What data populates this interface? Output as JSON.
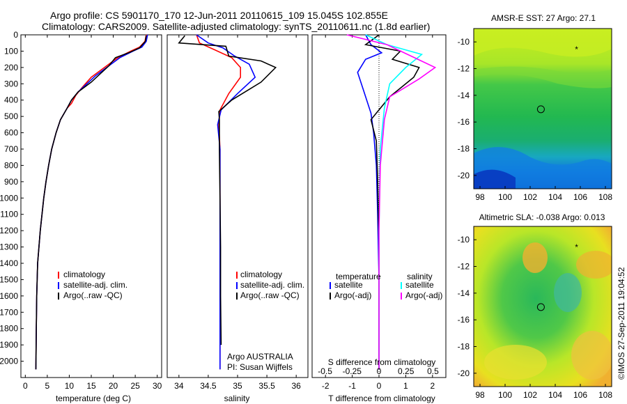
{
  "title_line1": "Argo profile: CS 5901170_170 12-Jun-2011 20110615_109 15.045S 102.855E",
  "title_line2": "Climatology: CARS2009. Satellite-adjusted climatology: synTS_20110611.nc (1.8d earlier)",
  "side_stamp": "©IMOS 27-Sep-2011 19:04:52",
  "colors": {
    "climatology": "#ff0000",
    "satellite": "#0000ff",
    "argo": "#000000",
    "salinity_satellite": "#00ffff",
    "salinity_argo": "#ff00ff"
  },
  "chart_data": [
    {
      "id": "temperature",
      "type": "line",
      "xlabel": "temperature (deg C)",
      "ylabel": "",
      "xlim": [
        -1,
        31
      ],
      "ylim": [
        2100,
        0
      ],
      "xticks": [
        0,
        5,
        10,
        15,
        20,
        25,
        30
      ],
      "yticks": [
        0,
        100,
        200,
        300,
        400,
        500,
        600,
        700,
        800,
        900,
        1000,
        1100,
        1200,
        1300,
        1400,
        1500,
        1600,
        1700,
        1800,
        1900,
        2000
      ],
      "legend": [
        "climatology",
        "satellite-adj. clim.",
        "Argo(..raw -QC)"
      ],
      "series": [
        {
          "name": "climatology",
          "color": "#ff0000",
          "x": [
            27.5,
            27.2,
            26,
            24,
            21,
            18,
            15,
            13,
            11.5,
            10.5,
            9.5,
            8,
            7,
            6,
            5.3,
            4.7,
            4.2,
            3.8,
            3.4,
            3.1,
            2.8,
            2.6,
            2.5,
            2.4
          ],
          "y": [
            0,
            40,
            75,
            100,
            140,
            200,
            260,
            320,
            370,
            420,
            450,
            520,
            600,
            700,
            800,
            900,
            1000,
            1100,
            1200,
            1300,
            1400,
            1600,
            1800,
            2050
          ]
        },
        {
          "name": "satellite-adj. clim.",
          "color": "#0000ff",
          "x": [
            27.8,
            27.5,
            26.5,
            24.5,
            21.5,
            19,
            16,
            14,
            12,
            10.5,
            9.5,
            8,
            7,
            6,
            5.3,
            4.7,
            4.2,
            3.8,
            3.4,
            3.1,
            2.8,
            2.6,
            2.5,
            2.4
          ],
          "y": [
            0,
            40,
            75,
            100,
            140,
            190,
            250,
            300,
            350,
            400,
            450,
            520,
            600,
            700,
            800,
            900,
            1000,
            1100,
            1200,
            1300,
            1400,
            1600,
            1800,
            2050
          ]
        },
        {
          "name": "Argo(..raw -QC)",
          "color": "#000000",
          "x": [
            27.5,
            27.3,
            26,
            23.5,
            20.5,
            19,
            17,
            15,
            12,
            10.5,
            9.5,
            8,
            7,
            6,
            5.3,
            4.7,
            4.2,
            3.8,
            3.4,
            3.1,
            2.8,
            2.6,
            2.5,
            2.4
          ],
          "y": [
            5,
            40,
            80,
            110,
            140,
            190,
            240,
            290,
            350,
            400,
            450,
            520,
            600,
            700,
            800,
            900,
            1000,
            1100,
            1200,
            1300,
            1400,
            1600,
            1800,
            2050
          ]
        }
      ]
    },
    {
      "id": "salinity",
      "type": "line",
      "xlabel": "salinity",
      "xlim": [
        33.8,
        36.2
      ],
      "ylim": [
        2100,
        0
      ],
      "xticks": [
        34,
        34.5,
        35,
        35.5,
        36
      ],
      "xtick_labels": [
        "34",
        "34.5",
        "35",
        "35.5",
        "36"
      ],
      "legend": [
        "climatology",
        "satellite-adj. clim.",
        "Argo(..raw -QC)"
      ],
      "annotation": [
        "Argo AUSTRALIA",
        "PI: Susan Wijffels"
      ],
      "series": [
        {
          "name": "climatology",
          "color": "#ff0000",
          "x": [
            34.3,
            34.35,
            34.6,
            34.9,
            35.05,
            35.05,
            34.85,
            34.7,
            34.68,
            34.7,
            34.7,
            34.7,
            34.7,
            34.7,
            34.7
          ],
          "y": [
            0,
            50,
            90,
            140,
            200,
            260,
            360,
            460,
            550,
            700,
            1000,
            1300,
            1600,
            1900,
            2050
          ]
        },
        {
          "name": "satellite-adj. clim.",
          "color": "#0000ff",
          "x": [
            34.3,
            34.5,
            34.75,
            34.95,
            35.2,
            35.3,
            35.0,
            34.72,
            34.66,
            34.7,
            34.7,
            34.7,
            34.7,
            34.7,
            34.7
          ],
          "y": [
            0,
            50,
            80,
            130,
            180,
            260,
            360,
            460,
            550,
            700,
            1000,
            1300,
            1600,
            1900,
            2050
          ]
        },
        {
          "name": "Argo(..raw -QC)",
          "color": "#000000",
          "x": [
            34.1,
            34.0,
            34.8,
            34.85,
            35.4,
            35.65,
            35.4,
            34.9,
            34.68,
            34.69,
            34.69,
            34.7,
            34.71,
            34.71,
            34.72
          ],
          "y": [
            5,
            50,
            70,
            130,
            160,
            200,
            290,
            400,
            470,
            520,
            700,
            1000,
            1300,
            1600,
            1900
          ]
        }
      ]
    },
    {
      "id": "difference",
      "type": "line",
      "xlabel": "T difference from climatology",
      "xlabel_top": "S difference from climatology",
      "xlim": [
        -2.5,
        2.5
      ],
      "ylim": [
        2100,
        0
      ],
      "xticks": [
        -2,
        -1,
        0,
        1,
        2
      ],
      "xtick_labels": [
        "-2",
        "-1",
        "0",
        "1",
        "2"
      ],
      "xticks_s": [
        -0.5,
        -0.25,
        0,
        0.25,
        0.5
      ],
      "xtick_labels_s": [
        "-0.5",
        "-0.25",
        "0",
        "0.25",
        "0.5"
      ],
      "legend_temperature_title": "temperature",
      "legend_salinity_title": "salinity",
      "legend": [
        "satellite",
        "Argo(-adj)",
        "satellite",
        "Argo(-adj)"
      ],
      "series": [
        {
          "name": "satellite",
          "group": "temperature",
          "color": "#0000ff",
          "x": [
            -0.5,
            -0.3,
            0.1,
            -0.5,
            -0.8,
            -0.6,
            -0.3,
            -0.2,
            -0.1,
            -0.05,
            0,
            0
          ],
          "y": [
            0,
            60,
            110,
            150,
            230,
            330,
            480,
            600,
            800,
            1100,
            1500,
            2050
          ]
        },
        {
          "name": "Argo(-adj)",
          "group": "temperature",
          "color": "#000000",
          "x": [
            0,
            -0.5,
            0.8,
            0.5,
            1.5,
            1.3,
            0.4,
            -0.3,
            -0.1,
            -0.05,
            0,
            0
          ],
          "y": [
            0,
            60,
            100,
            150,
            200,
            260,
            380,
            520,
            650,
            900,
            1300,
            2050
          ]
        },
        {
          "name": "satellite",
          "group": "salinity",
          "color": "#00ffff",
          "x": [
            -0.5,
            0.3,
            1.6,
            1.0,
            0.4,
            0.2,
            0.05,
            0,
            0
          ],
          "y": [
            0,
            60,
            120,
            200,
            300,
            450,
            700,
            1200,
            2050
          ]
        },
        {
          "name": "Argo(-adj)",
          "group": "salinity",
          "color": "#ff00ff",
          "x": [
            -1.2,
            0.3,
            1.2,
            2.1,
            1.5,
            0.4,
            0.2,
            0.05,
            0,
            0
          ],
          "y": [
            0,
            60,
            130,
            200,
            270,
            380,
            520,
            800,
            1200,
            2050
          ]
        }
      ]
    },
    {
      "id": "sst_map",
      "type": "heatmap",
      "title": "AMSR-E SST: 27 Argo: 27.1",
      "xlim": [
        97.5,
        108.5
      ],
      "ylim": [
        -21,
        -9
      ],
      "xticks": [
        98,
        100,
        102,
        104,
        106,
        108
      ],
      "yticks": [
        -10,
        -12,
        -14,
        -16,
        -18,
        -20
      ],
      "profile_location": {
        "lon": 102.855,
        "lat": -15.045
      },
      "marker": {
        "lon": 105.7,
        "lat": -10.5
      }
    },
    {
      "id": "sla_map",
      "type": "heatmap",
      "title": "Altimetric SLA: -0.038 Argo: 0.013",
      "xlim": [
        97.5,
        108.5
      ],
      "ylim": [
        -21,
        -9
      ],
      "xticks": [
        98,
        100,
        102,
        104,
        106,
        108
      ],
      "yticks": [
        -10,
        -12,
        -14,
        -16,
        -18,
        -20
      ],
      "profile_location": {
        "lon": 102.855,
        "lat": -15.045
      },
      "marker": {
        "lon": 105.7,
        "lat": -10.5
      }
    }
  ]
}
